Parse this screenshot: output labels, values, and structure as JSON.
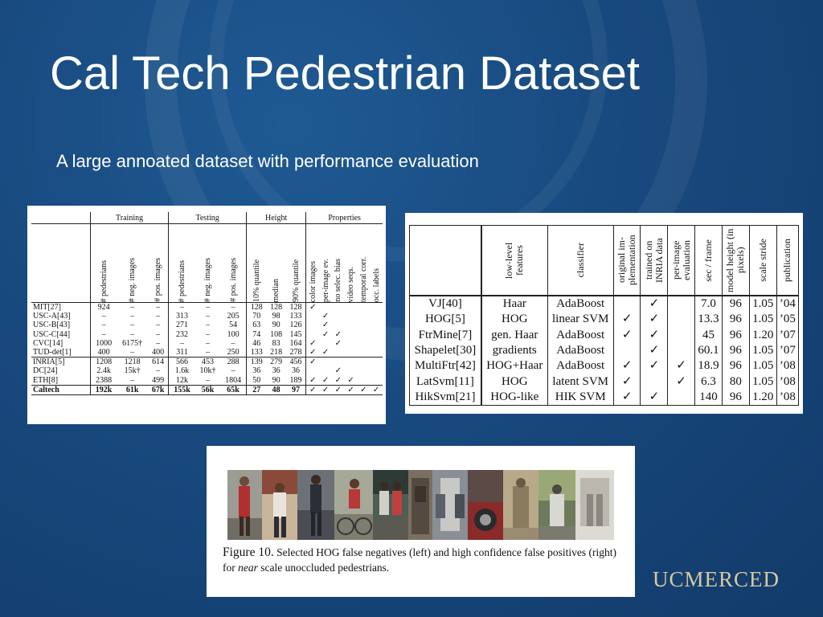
{
  "slide": {
    "title": "Cal Tech Pedestrian Dataset",
    "subtitle": "A large annoated dataset with performance evaluation",
    "logo": "UCMERCED"
  },
  "colors": {
    "background": "#18497e",
    "text": "#ffffff",
    "logo": "#d8c9a0"
  },
  "table1": {
    "groups": [
      "Training",
      "Testing",
      "Height",
      "Properties"
    ],
    "columns": [
      "# pedestrians",
      "# neg. images",
      "# pos. images",
      "# pedestrians",
      "# neg. images",
      "# pos. images",
      "10% quantile",
      "median",
      "90% quantile",
      "color images",
      "per-image ev.",
      "no selec. bias",
      "video seqs.",
      "temporal corr.",
      "occ. labels"
    ],
    "rows": [
      [
        "MIT[27]",
        "924",
        "–",
        "–",
        "–",
        "–",
        "–",
        "128",
        "128",
        "128",
        "✓",
        "",
        "",
        "",
        "",
        ""
      ],
      [
        "USC-A[43]",
        "–",
        "–",
        "–",
        "313",
        "–",
        "205",
        "70",
        "98",
        "133",
        "",
        "✓",
        "",
        "",
        "",
        ""
      ],
      [
        "USC-B[43]",
        "–",
        "–",
        "–",
        "271",
        "–",
        "54",
        "63",
        "90",
        "126",
        "",
        "✓",
        "",
        "",
        "",
        ""
      ],
      [
        "USC-C[44]",
        "–",
        "–",
        "–",
        "232",
        "–",
        "100",
        "74",
        "108",
        "145",
        "",
        "✓",
        "✓",
        "",
        "",
        ""
      ],
      [
        "CVC[14]",
        "1000",
        "6175†",
        "–",
        "–",
        "–",
        "–",
        "46",
        "83",
        "164",
        "✓",
        "",
        "✓",
        "",
        "",
        ""
      ],
      [
        "TUD-det[1]",
        "400",
        "–",
        "400",
        "311",
        "–",
        "250",
        "133",
        "218",
        "278",
        "✓",
        "✓",
        "",
        "",
        "",
        ""
      ],
      [
        "INRIA[5]",
        "1208",
        "1218",
        "614",
        "566",
        "453",
        "288",
        "139",
        "279",
        "456",
        "✓",
        "",
        "",
        "",
        "",
        ""
      ],
      [
        "DC[24]",
        "2.4k",
        "15k†",
        "–",
        "1.6k",
        "10k†",
        "–",
        "36",
        "36",
        "36",
        "",
        "",
        "✓",
        "",
        "",
        ""
      ],
      [
        "ETH[8]",
        "2388",
        "–",
        "499",
        "12k",
        "–",
        "1804",
        "50",
        "90",
        "189",
        "✓",
        "✓",
        "✓",
        "✓",
        "",
        ""
      ],
      [
        "Caltech",
        "192k",
        "61k",
        "67k",
        "155k",
        "56k",
        "65k",
        "27",
        "48",
        "97",
        "✓",
        "✓",
        "✓",
        "✓",
        "✓",
        "✓"
      ]
    ]
  },
  "table2": {
    "columns": [
      "low-level features",
      "classifier",
      "original im- plementation",
      "trained on INRIA data",
      "per-image evaluation",
      "sec / frame",
      "model height (in pixels)",
      "scale stride",
      "publication"
    ],
    "rows": [
      [
        "VJ[40]",
        "Haar",
        "AdaBoost",
        "",
        "✓",
        "",
        "7.0",
        "96",
        "1.05",
        "’04"
      ],
      [
        "HOG[5]",
        "HOG",
        "linear SVM",
        "✓",
        "✓",
        "",
        "13.3",
        "96",
        "1.05",
        "’05"
      ],
      [
        "FtrMine[7]",
        "gen. Haar",
        "AdaBoost",
        "✓",
        "✓",
        "",
        "45",
        "96",
        "1.20",
        "’07"
      ],
      [
        "Shapelet[30]",
        "gradients",
        "AdaBoost",
        "",
        "✓",
        "",
        "60.1",
        "96",
        "1.05",
        "’07"
      ],
      [
        "MultiFtr[42]",
        "HOG+Haar",
        "AdaBoost",
        "✓",
        "✓",
        "✓",
        "18.9",
        "96",
        "1.05",
        "’08"
      ],
      [
        "LatSvm[11]",
        "HOG",
        "latent SVM",
        "✓",
        "",
        "✓",
        "6.3",
        "80",
        "1.05",
        "’08"
      ],
      [
        "HikSvm[21]",
        "HOG-like",
        "HIK SVM",
        "✓",
        "✓",
        "",
        "140",
        "96",
        "1.20",
        "’08"
      ]
    ]
  },
  "figure": {
    "label": "Figure 10.",
    "caption_a": "Selected HOG false negatives (left) and high confidence false positives (right) for ",
    "caption_em": "near",
    "caption_b": " scale unoccluded pedestrians."
  }
}
